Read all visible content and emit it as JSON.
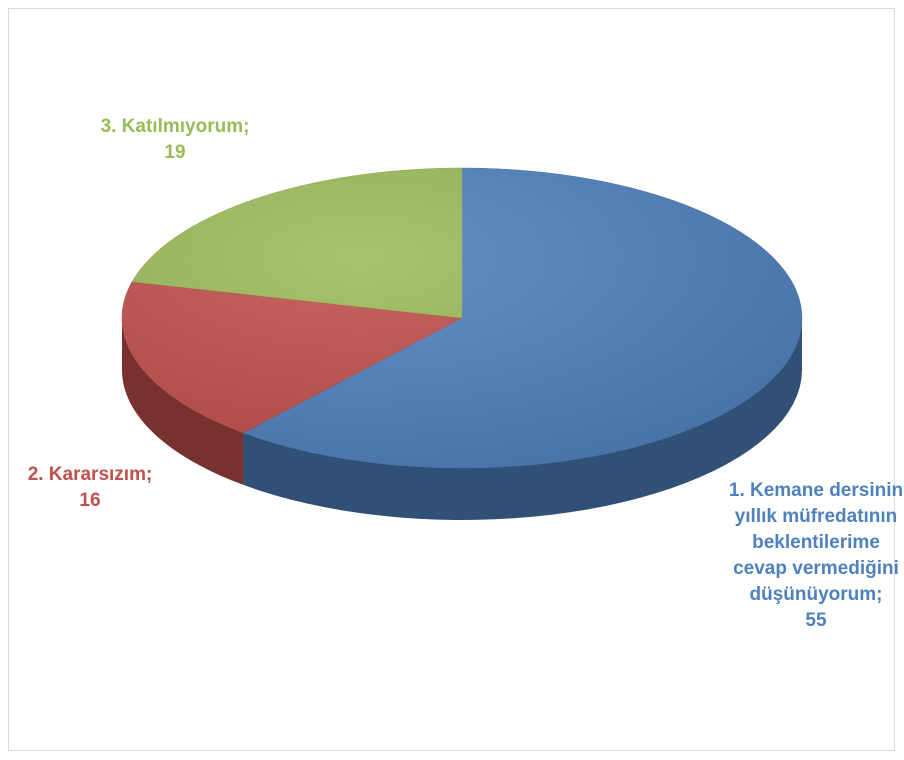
{
  "chart_data": {
    "type": "pie",
    "categories": [
      "1. Kemane dersinin yıllık müfredatının beklentilerime cevap vermediğini düşünüyorum",
      "2. Kararsızım",
      "3. Katılmıyorum"
    ],
    "values": [
      55,
      16,
      19
    ],
    "colors": [
      "#4f81bd",
      "#c0504d",
      "#9bbb59"
    ],
    "label_separator": ";"
  }
}
